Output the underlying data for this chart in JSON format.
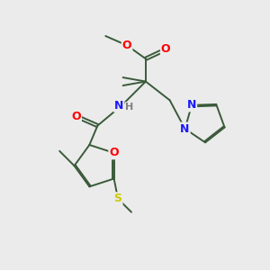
{
  "background_color": "#ebebeb",
  "bond_color": "#3a5a3a",
  "atom_colors": {
    "O": "#ff0000",
    "N": "#1a1aff",
    "S": "#cccc00",
    "H": "#808080",
    "C": "#3a5a3a"
  }
}
